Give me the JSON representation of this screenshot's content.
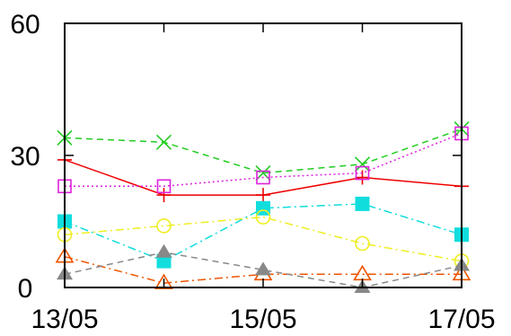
{
  "chart_data": {
    "type": "line",
    "title": "",
    "xlabel": "",
    "ylabel": "",
    "x": [
      "13/05",
      "14/05",
      "15/05",
      "16/05",
      "17/05"
    ],
    "x_tick_labels": [
      "13/05",
      "15/05",
      "17/05"
    ],
    "ylim": [
      0,
      60
    ],
    "y_tick_labels": [
      "0",
      "30",
      "60"
    ],
    "grid": false,
    "series": [
      {
        "values": [
          29,
          21,
          21,
          25,
          23
        ],
        "color": "#ee0000",
        "marker": "plus",
        "dash": "solid"
      },
      {
        "values": [
          34,
          33,
          26,
          28,
          36
        ],
        "color": "#22cc22",
        "marker": "x",
        "dash": "dashed"
      },
      {
        "values": [
          23,
          23,
          25,
          26,
          35
        ],
        "color": "#dd22dd",
        "marker": "square-open",
        "dash": "dotted"
      },
      {
        "values": [
          15,
          6,
          18,
          19,
          12
        ],
        "color": "#11dddd",
        "marker": "square-filled",
        "dash": "dashdot"
      },
      {
        "values": [
          12,
          14,
          16,
          10,
          6
        ],
        "color": "#eeee22",
        "marker": "circle-open",
        "dash": "dashdot"
      },
      {
        "values": [
          7,
          1,
          3,
          3,
          3
        ],
        "color": "#ee5500",
        "marker": "triangle-open",
        "dash": "dashdot"
      },
      {
        "values": [
          3,
          8,
          4,
          0,
          5
        ],
        "color": "#888888",
        "marker": "triangle-filled",
        "dash": "dashed"
      }
    ]
  }
}
